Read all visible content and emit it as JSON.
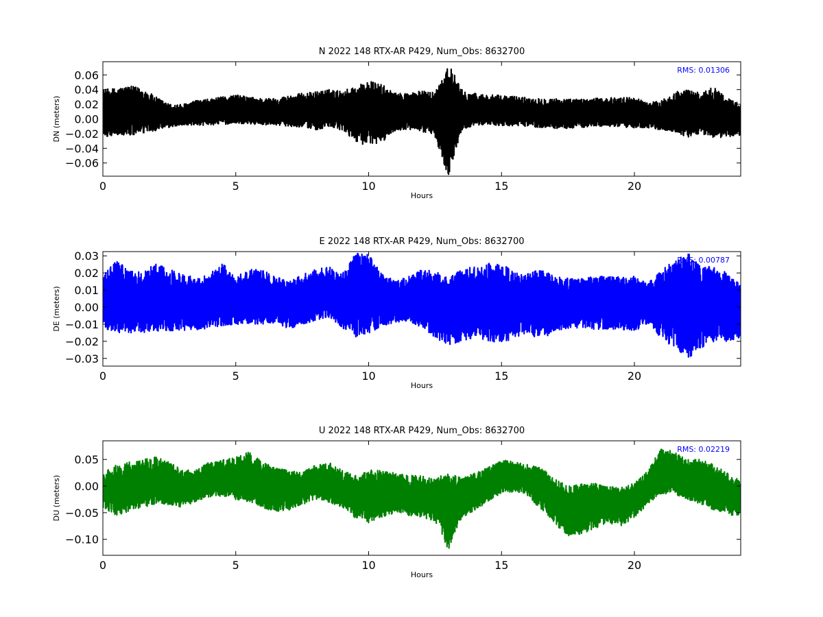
{
  "chart_data": [
    {
      "type": "line",
      "title": "N 2022 148 RTX-AR  P429, Num_Obs: 8632700",
      "xlabel": "Hours",
      "ylabel": "DN (meters)",
      "xlim": [
        0,
        24
      ],
      "ylim": [
        -0.078,
        0.078
      ],
      "xticks": [
        0,
        5,
        10,
        15,
        20
      ],
      "yticks": [
        0.06,
        0.04,
        0.02,
        0.0,
        -0.02,
        -0.04,
        -0.06
      ],
      "ytick_labels": [
        "0.06",
        "0.04",
        "0.02",
        "0.00",
        "−0.02",
        "−0.04",
        "−0.06"
      ],
      "color": "#000000",
      "annotation": "RMS:  0.01306",
      "annotation_color": "#0000ff",
      "series": [
        {
          "x": [
            0,
            0.5,
            1,
            1.5,
            2,
            2.5,
            3,
            3.5,
            4,
            4.5,
            5,
            5.5,
            6,
            6.5,
            7,
            7.5,
            8,
            8.5,
            9,
            9.5,
            10,
            10.5,
            11,
            11.5,
            12,
            12.5,
            13,
            13.5,
            14,
            14.5,
            15,
            15.5,
            16,
            16.5,
            17,
            17.5,
            18,
            18.5,
            19,
            19.5,
            20,
            20.5,
            21,
            21.5,
            22,
            22.5,
            23,
            23.5,
            24
          ],
          "values": [
            0.01,
            0.008,
            0.009,
            0.006,
            0.004,
            0.002,
            0.001,
            0.006,
            0.009,
            0.011,
            0.012,
            0.011,
            0.01,
            0.009,
            0.008,
            0.01,
            0.012,
            0.014,
            0.012,
            0.01,
            0.006,
            0.004,
            0.006,
            0.008,
            0.009,
            0.007,
            -0.01,
            0.004,
            0.008,
            0.01,
            0.011,
            0.01,
            0.009,
            0.008,
            0.007,
            0.006,
            0.007,
            0.008,
            0.009,
            0.009,
            0.008,
            0.006,
            0.005,
            0.006,
            0.007,
            0.006,
            0.005,
            0.004,
            0.003
          ],
          "upper": [
            0.04,
            0.042,
            0.045,
            0.042,
            0.03,
            0.02,
            0.02,
            0.025,
            0.027,
            0.03,
            0.033,
            0.03,
            0.028,
            0.028,
            0.032,
            0.035,
            0.037,
            0.04,
            0.038,
            0.045,
            0.052,
            0.047,
            0.035,
            0.036,
            0.038,
            0.037,
            0.078,
            0.04,
            0.035,
            0.033,
            0.032,
            0.031,
            0.029,
            0.028,
            0.028,
            0.027,
            0.027,
            0.028,
            0.029,
            0.029,
            0.03,
            0.022,
            0.025,
            0.037,
            0.04,
            0.035,
            0.045,
            0.028,
            0.021
          ],
          "lower": [
            -0.025,
            -0.022,
            -0.023,
            -0.02,
            -0.016,
            -0.012,
            -0.008,
            -0.01,
            -0.008,
            -0.008,
            -0.006,
            -0.007,
            -0.008,
            -0.008,
            -0.01,
            -0.011,
            -0.015,
            -0.012,
            -0.016,
            -0.03,
            -0.038,
            -0.032,
            -0.016,
            -0.015,
            -0.017,
            -0.025,
            -0.078,
            -0.015,
            -0.008,
            -0.008,
            -0.009,
            -0.01,
            -0.01,
            -0.012,
            -0.013,
            -0.013,
            -0.012,
            -0.01,
            -0.01,
            -0.012,
            -0.012,
            -0.012,
            -0.015,
            -0.018,
            -0.025,
            -0.02,
            -0.026,
            -0.025,
            -0.022
          ]
        }
      ]
    },
    {
      "type": "line",
      "title": "E 2022 148 RTX-AR  P429, Num_Obs: 8632700",
      "xlabel": "Hours",
      "ylabel": "DE (meters)",
      "xlim": [
        0,
        24
      ],
      "ylim": [
        -0.0345,
        0.0325
      ],
      "xticks": [
        0,
        5,
        10,
        15,
        20
      ],
      "yticks": [
        0.03,
        0.02,
        0.01,
        0.0,
        -0.01,
        -0.02,
        -0.03
      ],
      "ytick_labels": [
        "0.03",
        "0.02",
        "0.01",
        "0.00",
        "−0.01",
        "−0.02",
        "−0.03"
      ],
      "color": "#0000ff",
      "annotation": "RMS:  0.00787",
      "annotation_color": "#0000ff",
      "series": [
        {
          "x": [
            0,
            0.5,
            1,
            1.5,
            2,
            2.5,
            3,
            3.5,
            4,
            4.5,
            5,
            5.5,
            6,
            6.5,
            7,
            7.5,
            8,
            8.5,
            9,
            9.5,
            10,
            10.5,
            11,
            11.5,
            12,
            12.5,
            13,
            13.5,
            14,
            14.5,
            15,
            15.5,
            16,
            16.5,
            17,
            17.5,
            18,
            18.5,
            19,
            19.5,
            20,
            20.5,
            21,
            21.5,
            22,
            22.5,
            23,
            23.5,
            24
          ],
          "values": [
            0.003,
            0.002,
            0.002,
            0.003,
            0.003,
            0.003,
            0.002,
            0.002,
            0.003,
            0.003,
            0.003,
            0.003,
            0.003,
            0.003,
            0.003,
            0.003,
            0.005,
            0.006,
            0.006,
            0.006,
            0.006,
            0.005,
            0.004,
            0.004,
            0.004,
            0.003,
            0.002,
            0.002,
            0.002,
            0.002,
            0.002,
            0.003,
            0.003,
            0.003,
            0.003,
            0.003,
            0.003,
            0.003,
            0.003,
            0.003,
            0.003,
            0.003,
            0.002,
            0.002,
            0.002,
            0.002,
            0.002,
            0.001,
            0.001
          ],
          "upper": [
            0.018,
            0.028,
            0.021,
            0.021,
            0.026,
            0.022,
            0.02,
            0.017,
            0.02,
            0.026,
            0.018,
            0.022,
            0.022,
            0.018,
            0.015,
            0.019,
            0.022,
            0.024,
            0.02,
            0.032,
            0.031,
            0.02,
            0.015,
            0.018,
            0.022,
            0.021,
            0.017,
            0.022,
            0.024,
            0.026,
            0.026,
            0.02,
            0.02,
            0.022,
            0.018,
            0.017,
            0.017,
            0.018,
            0.018,
            0.018,
            0.018,
            0.014,
            0.021,
            0.028,
            0.032,
            0.024,
            0.024,
            0.02,
            0.013
          ],
          "lower": [
            -0.012,
            -0.015,
            -0.015,
            -0.015,
            -0.014,
            -0.014,
            -0.014,
            -0.014,
            -0.012,
            -0.011,
            -0.01,
            -0.01,
            -0.01,
            -0.009,
            -0.013,
            -0.01,
            -0.008,
            -0.006,
            -0.012,
            -0.018,
            -0.016,
            -0.011,
            -0.009,
            -0.008,
            -0.012,
            -0.018,
            -0.022,
            -0.02,
            -0.018,
            -0.02,
            -0.021,
            -0.018,
            -0.015,
            -0.02,
            -0.014,
            -0.013,
            -0.012,
            -0.013,
            -0.013,
            -0.013,
            -0.014,
            -0.01,
            -0.018,
            -0.024,
            -0.032,
            -0.024,
            -0.02,
            -0.02,
            -0.018
          ]
        }
      ]
    },
    {
      "type": "line",
      "title": "U 2022 148 RTX-AR  P429, Num_Obs: 8632700",
      "xlabel": "Hours",
      "ylabel": "DU (meters)",
      "xlim": [
        0,
        24
      ],
      "ylim": [
        -0.13,
        0.085
      ],
      "xticks": [
        0,
        5,
        10,
        15,
        20
      ],
      "yticks": [
        0.05,
        0.0,
        -0.05,
        -0.1
      ],
      "ytick_labels": [
        "0.05",
        "0.00",
        "−0.05",
        "−0.10"
      ],
      "color": "#008000",
      "annotation": "RMS:  0.02219",
      "annotation_color": "#0000ff",
      "series": [
        {
          "x": [
            0,
            0.5,
            1,
            1.5,
            2,
            2.5,
            3,
            3.5,
            4,
            4.5,
            5,
            5.5,
            6,
            6.5,
            7,
            7.5,
            8,
            8.5,
            9,
            9.5,
            10,
            10.5,
            11,
            11.5,
            12,
            12.5,
            13,
            13.5,
            14,
            14.5,
            15,
            15.5,
            16,
            16.5,
            17,
            17.5,
            18,
            18.5,
            19,
            19.5,
            20,
            20.5,
            21,
            21.5,
            22,
            22.5,
            23,
            23.5,
            24
          ],
          "values": [
            -0.005,
            -0.01,
            0.0,
            0.005,
            0.01,
            0.005,
            -0.005,
            0.0,
            0.01,
            0.015,
            0.01,
            0.005,
            0.0,
            -0.005,
            -0.005,
            0.0,
            0.01,
            0.005,
            -0.005,
            -0.02,
            -0.025,
            -0.02,
            -0.015,
            -0.02,
            -0.025,
            -0.025,
            -0.03,
            -0.025,
            -0.015,
            0.0,
            0.02,
            0.02,
            0.01,
            -0.01,
            -0.025,
            -0.045,
            -0.04,
            -0.035,
            -0.03,
            -0.03,
            -0.025,
            0.0,
            0.025,
            0.025,
            0.015,
            0.01,
            0.0,
            -0.015,
            -0.025
          ],
          "upper": [
            0.025,
            0.04,
            0.045,
            0.05,
            0.055,
            0.045,
            0.03,
            0.03,
            0.045,
            0.05,
            0.055,
            0.065,
            0.045,
            0.035,
            0.03,
            0.025,
            0.04,
            0.045,
            0.03,
            0.02,
            0.03,
            0.03,
            0.025,
            0.02,
            0.02,
            0.015,
            0.025,
            0.015,
            0.025,
            0.035,
            0.05,
            0.045,
            0.04,
            0.035,
            0.015,
            0.0,
            0.005,
            0.005,
            0.0,
            0.0,
            0.005,
            0.03,
            0.07,
            0.065,
            0.05,
            0.05,
            0.04,
            0.025,
            0.01
          ],
          "lower": [
            -0.04,
            -0.055,
            -0.05,
            -0.04,
            -0.035,
            -0.035,
            -0.04,
            -0.03,
            -0.02,
            -0.02,
            -0.025,
            -0.03,
            -0.04,
            -0.05,
            -0.045,
            -0.035,
            -0.025,
            -0.03,
            -0.04,
            -0.06,
            -0.07,
            -0.06,
            -0.05,
            -0.055,
            -0.06,
            -0.065,
            -0.12,
            -0.06,
            -0.045,
            -0.03,
            -0.015,
            -0.01,
            -0.02,
            -0.045,
            -0.07,
            -0.095,
            -0.09,
            -0.08,
            -0.07,
            -0.075,
            -0.06,
            -0.035,
            -0.015,
            -0.015,
            -0.025,
            -0.035,
            -0.045,
            -0.055,
            -0.055
          ]
        }
      ]
    }
  ]
}
